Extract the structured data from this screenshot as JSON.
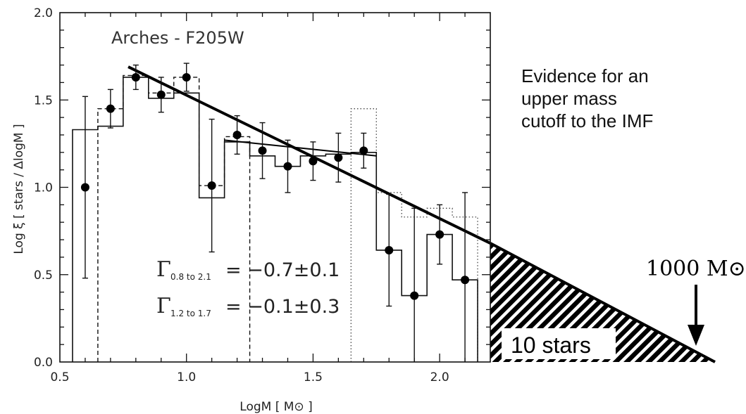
{
  "chart_data": {
    "type": "line",
    "title": "Arches - F205W",
    "xlabel": "LogM [ M⊙ ]",
    "ylabel": "Log ξ [ stars / ΔlogM ]",
    "xlim": [
      0.5,
      2.2
    ],
    "ylim": [
      0.0,
      2.0
    ],
    "xticks": [
      "0.5",
      "1.0",
      "1.5",
      "2.0"
    ],
    "yticks": [
      "0.0",
      "0.5",
      "1.0",
      "1.5",
      "2.0"
    ],
    "x_tick_values": [
      0.5,
      1.0,
      1.5,
      2.0
    ],
    "y_tick_values": [
      0.0,
      0.5,
      1.0,
      1.5,
      2.0
    ],
    "grid": false,
    "solid_histogram": {
      "edges": [
        0.55,
        0.65,
        0.75,
        0.85,
        0.95,
        1.05,
        1.15,
        1.25,
        1.35,
        1.45,
        1.55,
        1.65,
        1.75,
        1.85,
        1.95,
        2.05,
        2.15
      ],
      "values": [
        1.33,
        1.35,
        1.63,
        1.51,
        1.54,
        0.94,
        1.26,
        1.18,
        1.12,
        1.18,
        1.19,
        1.2,
        0.64,
        0.38,
        0.73,
        0.47
      ]
    },
    "dashed_histogram": {
      "edges": [
        0.65,
        0.75,
        0.85,
        0.95,
        1.05,
        1.15,
        1.25
      ],
      "values": [
        1.45,
        1.64,
        1.54,
        1.63,
        1.01,
        1.29
      ]
    },
    "dotted_histogram": {
      "edges": [
        1.65,
        1.75,
        1.85,
        1.95,
        2.05,
        2.15
      ],
      "values": [
        1.45,
        0.97,
        0.83,
        0.88,
        0.83
      ]
    },
    "points": [
      {
        "x": 0.6,
        "y": 1.0,
        "err": 0.52
      },
      {
        "x": 0.7,
        "y": 1.45,
        "err": 0.11
      },
      {
        "x": 0.8,
        "y": 1.63,
        "err": 0.07
      },
      {
        "x": 0.9,
        "y": 1.53,
        "err": 0.1
      },
      {
        "x": 1.0,
        "y": 1.63,
        "err": 0.08
      },
      {
        "x": 1.1,
        "y": 1.01,
        "err": 0.38
      },
      {
        "x": 1.2,
        "y": 1.3,
        "err": 0.11
      },
      {
        "x": 1.3,
        "y": 1.21,
        "err": 0.16
      },
      {
        "x": 1.4,
        "y": 1.12,
        "err": 0.15
      },
      {
        "x": 1.5,
        "y": 1.15,
        "err": 0.11
      },
      {
        "x": 1.6,
        "y": 1.17,
        "err": 0.14
      },
      {
        "x": 1.7,
        "y": 1.21,
        "err": 0.1
      },
      {
        "x": 1.8,
        "y": 0.64,
        "err": 0.32
      },
      {
        "x": 1.9,
        "y": 0.38,
        "err": 0.5
      },
      {
        "x": 2.0,
        "y": 0.73,
        "err": 0.17
      },
      {
        "x": 2.1,
        "y": 0.47,
        "err": 0.5
      }
    ],
    "fit_lines": [
      {
        "x": [
          0.77,
          2.2
        ],
        "y": [
          1.69,
          0.68
        ],
        "style": "thick"
      },
      {
        "x": [
          1.15,
          1.75
        ],
        "y": [
          1.27,
          1.18
        ],
        "style": "thin"
      }
    ],
    "extrapolation": {
      "x": [
        2.2,
        3.1
      ],
      "y": [
        0.68,
        0.0
      ]
    },
    "annotations": {
      "gamma_symbol": "Γ",
      "gamma1_sub": "0.8 to 2.1",
      "gamma1_val": "= −0.7±0.1",
      "gamma2_sub": "1.2 to 1.7",
      "gamma2_val": "= −0.1±0.3",
      "stars_label": "10 stars",
      "mass_label": "1000 M⊙!",
      "evidence_lines": [
        "Evidence for an",
        "upper mass",
        "cutoff to the IMF"
      ]
    }
  }
}
